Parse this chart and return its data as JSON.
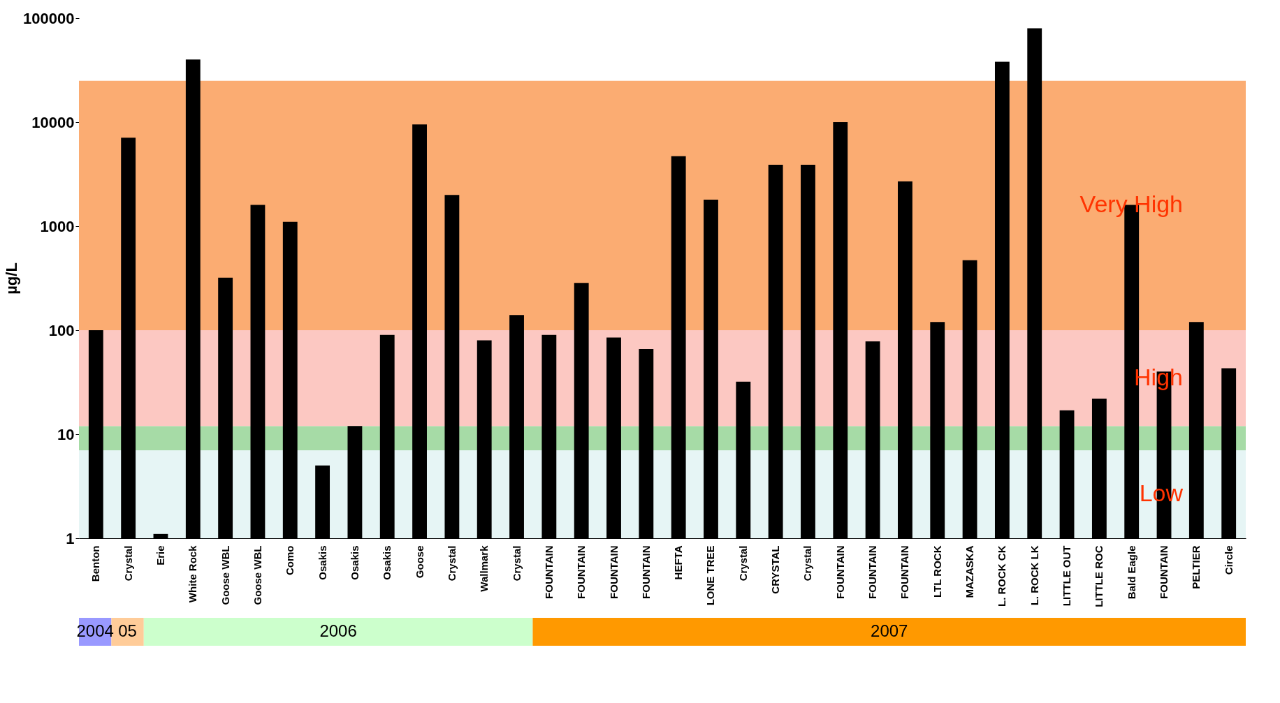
{
  "chart_data": {
    "type": "bar",
    "ylabel": "µg/L",
    "categories": [
      "Benton",
      "Crystal",
      "Erie",
      "White Rock",
      "Goose WBL",
      "Goose WBL",
      "Como",
      "Osakis",
      "Osakis",
      "Osakis",
      "Goose",
      "Crystal",
      "Wallmark",
      "Crystal",
      "FOUNTAIN",
      "FOUNTAIN",
      "FOUNTAIN",
      "FOUNTAIN",
      "HEFTA",
      "LONE TREE",
      "Crystal",
      "CRYSTAL",
      "Crystal",
      "FOUNTAIN",
      "FOUNTAIN",
      "FOUNTAIN",
      "LTL ROCK",
      "MAZASKA",
      "L. ROCK CK",
      "L. ROCK LK",
      "LITTLE OUT",
      "LITTLE ROC",
      "Bald Eagle",
      "FOUNTAIN",
      "PELTIER",
      "Circle"
    ],
    "values": [
      100,
      7100,
      1.1,
      40000,
      320,
      1600,
      1100,
      5,
      12,
      90,
      9500,
      2000,
      80,
      140,
      90,
      285,
      85,
      66,
      4700,
      1800,
      32,
      3900,
      3900,
      10000,
      78,
      2700,
      120,
      470,
      38000,
      80000,
      17,
      22,
      1600,
      40,
      120,
      43
    ],
    "color": "#000000",
    "log": true,
    "ylim": [
      1,
      100000
    ],
    "yticks": [
      1,
      10,
      100,
      1000,
      10000,
      100000
    ],
    "bands": [
      {
        "axis": "y",
        "from": 1,
        "to": 7,
        "label": "Low",
        "color": "#e6f5f5"
      },
      {
        "axis": "y",
        "from": 7,
        "to": 12,
        "label": null,
        "color": "#a6dba6"
      },
      {
        "axis": "y",
        "from": 12,
        "to": 100,
        "label": "High",
        "color": "#fcc8c2"
      },
      {
        "axis": "y",
        "from": 100,
        "to": 25000,
        "label": "Very High",
        "color": "#fbac72"
      }
    ],
    "annotations": [
      "2004",
      "05",
      "2006",
      "2007"
    ]
  }
}
